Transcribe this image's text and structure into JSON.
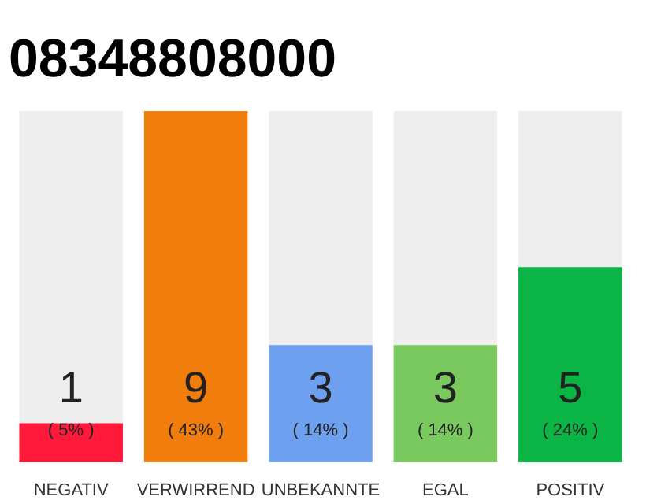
{
  "chart_data": {
    "type": "bar",
    "title": "08348808000",
    "categories": [
      "NEGATIV",
      "VERWIRREND",
      "UNBEKANNTE",
      "EGAL",
      "POSITIV"
    ],
    "values": [
      1,
      9,
      3,
      3,
      5
    ],
    "colors": [
      "#ff1a3c",
      "#f07d0c",
      "#6ea0f0",
      "#7ac95e",
      "#0ab545"
    ],
    "ylim": [
      0,
      9
    ],
    "data_labels": true,
    "tick_labels": "x",
    "grid": false,
    "annotations": [
      "( 5% )",
      "( 43% )",
      "( 14% )",
      "( 14% )",
      "( 24% )"
    ]
  }
}
